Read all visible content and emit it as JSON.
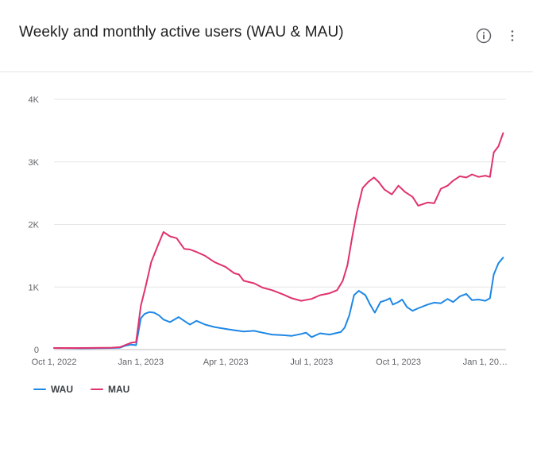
{
  "card": {
    "title": "Weekly and monthly active users (WAU & MAU)",
    "info_icon": "info-icon",
    "menu_icon": "more-vert-icon"
  },
  "colors": {
    "wau": "#1e88e5",
    "mau": "#e0326e",
    "grid": "#e6e6e6",
    "axis": "#bdbdbd"
  },
  "chart_data": {
    "type": "line",
    "title": "Weekly and monthly active users (WAU & MAU)",
    "xlabel": "",
    "ylabel": "",
    "xlim": [
      "2022-10-01",
      "2024-01-23"
    ],
    "ylim": [
      0,
      4000
    ],
    "grid": true,
    "legend_position": "bottom-left",
    "x_ticks": [
      {
        "label": "Oct 1, 2022",
        "date": "2022-10-01"
      },
      {
        "label": "Jan 1, 2023",
        "date": "2023-01-01"
      },
      {
        "label": "Apr 1, 2023",
        "date": "2023-04-01"
      },
      {
        "label": "Jul 1, 2023",
        "date": "2023-07-01"
      },
      {
        "label": "Oct 1, 2023",
        "date": "2023-10-01"
      },
      {
        "label": "Jan 1, 20…",
        "date": "2024-01-01"
      }
    ],
    "y_ticks": [
      {
        "label": "0",
        "value": 0
      },
      {
        "label": "1K",
        "value": 1000
      },
      {
        "label": "2K",
        "value": 2000
      },
      {
        "label": "3K",
        "value": 3000
      },
      {
        "label": "4K",
        "value": 4000
      }
    ],
    "series": [
      {
        "name": "WAU",
        "color": "#1e88e5",
        "points": [
          [
            "2022-10-01",
            25
          ],
          [
            "2022-11-01",
            20
          ],
          [
            "2022-12-01",
            25
          ],
          [
            "2022-12-10",
            30
          ],
          [
            "2022-12-15",
            60
          ],
          [
            "2022-12-22",
            80
          ],
          [
            "2022-12-27",
            70
          ],
          [
            "2023-01-01",
            500
          ],
          [
            "2023-01-05",
            570
          ],
          [
            "2023-01-10",
            600
          ],
          [
            "2023-01-15",
            590
          ],
          [
            "2023-01-20",
            550
          ],
          [
            "2023-01-25",
            480
          ],
          [
            "2023-02-01",
            440
          ],
          [
            "2023-02-10",
            520
          ],
          [
            "2023-02-18",
            440
          ],
          [
            "2023-02-22",
            400
          ],
          [
            "2023-03-01",
            460
          ],
          [
            "2023-03-10",
            400
          ],
          [
            "2023-03-20",
            360
          ],
          [
            "2023-04-01",
            330
          ],
          [
            "2023-04-10",
            310
          ],
          [
            "2023-04-20",
            290
          ],
          [
            "2023-05-01",
            300
          ],
          [
            "2023-05-10",
            270
          ],
          [
            "2023-05-20",
            240
          ],
          [
            "2023-06-01",
            230
          ],
          [
            "2023-06-10",
            220
          ],
          [
            "2023-06-20",
            250
          ],
          [
            "2023-06-25",
            270
          ],
          [
            "2023-07-01",
            200
          ],
          [
            "2023-07-10",
            260
          ],
          [
            "2023-07-20",
            240
          ],
          [
            "2023-08-01",
            280
          ],
          [
            "2023-08-05",
            350
          ],
          [
            "2023-08-10",
            550
          ],
          [
            "2023-08-15",
            870
          ],
          [
            "2023-08-20",
            940
          ],
          [
            "2023-08-27",
            870
          ],
          [
            "2023-09-01",
            720
          ],
          [
            "2023-09-06",
            590
          ],
          [
            "2023-09-12",
            760
          ],
          [
            "2023-09-18",
            790
          ],
          [
            "2023-09-22",
            820
          ],
          [
            "2023-09-25",
            720
          ],
          [
            "2023-10-01",
            760
          ],
          [
            "2023-10-05",
            800
          ],
          [
            "2023-10-10",
            680
          ],
          [
            "2023-10-16",
            620
          ],
          [
            "2023-10-22",
            660
          ],
          [
            "2023-11-01",
            720
          ],
          [
            "2023-11-08",
            750
          ],
          [
            "2023-11-15",
            740
          ],
          [
            "2023-11-22",
            810
          ],
          [
            "2023-11-28",
            760
          ],
          [
            "2023-12-05",
            850
          ],
          [
            "2023-12-12",
            890
          ],
          [
            "2023-12-18",
            790
          ],
          [
            "2023-12-25",
            800
          ],
          [
            "2024-01-01",
            780
          ],
          [
            "2024-01-06",
            820
          ],
          [
            "2024-01-10",
            1200
          ],
          [
            "2024-01-15",
            1380
          ],
          [
            "2024-01-20",
            1470
          ]
        ]
      },
      {
        "name": "MAU",
        "color": "#e0326e",
        "points": [
          [
            "2022-10-01",
            25
          ],
          [
            "2022-11-01",
            25
          ],
          [
            "2022-12-01",
            30
          ],
          [
            "2022-12-10",
            40
          ],
          [
            "2022-12-15",
            70
          ],
          [
            "2022-12-22",
            110
          ],
          [
            "2022-12-27",
            120
          ],
          [
            "2023-01-01",
            700
          ],
          [
            "2023-01-06",
            1000
          ],
          [
            "2023-01-12",
            1400
          ],
          [
            "2023-01-20",
            1700
          ],
          [
            "2023-01-25",
            1880
          ],
          [
            "2023-02-01",
            1810
          ],
          [
            "2023-02-08",
            1780
          ],
          [
            "2023-02-16",
            1610
          ],
          [
            "2023-02-22",
            1600
          ],
          [
            "2023-03-01",
            1560
          ],
          [
            "2023-03-10",
            1500
          ],
          [
            "2023-03-20",
            1400
          ],
          [
            "2023-04-01",
            1320
          ],
          [
            "2023-04-10",
            1220
          ],
          [
            "2023-04-15",
            1200
          ],
          [
            "2023-04-20",
            1100
          ],
          [
            "2023-05-01",
            1060
          ],
          [
            "2023-05-10",
            990
          ],
          [
            "2023-05-20",
            950
          ],
          [
            "2023-06-01",
            880
          ],
          [
            "2023-06-10",
            820
          ],
          [
            "2023-06-20",
            780
          ],
          [
            "2023-07-01",
            810
          ],
          [
            "2023-07-10",
            870
          ],
          [
            "2023-07-20",
            900
          ],
          [
            "2023-07-28",
            950
          ],
          [
            "2023-08-03",
            1100
          ],
          [
            "2023-08-08",
            1350
          ],
          [
            "2023-08-13",
            1800
          ],
          [
            "2023-08-18",
            2200
          ],
          [
            "2023-08-24",
            2580
          ],
          [
            "2023-08-30",
            2680
          ],
          [
            "2023-09-05",
            2750
          ],
          [
            "2023-09-10",
            2680
          ],
          [
            "2023-09-16",
            2560
          ],
          [
            "2023-09-24",
            2480
          ],
          [
            "2023-10-01",
            2620
          ],
          [
            "2023-10-08",
            2520
          ],
          [
            "2023-10-16",
            2440
          ],
          [
            "2023-10-22",
            2300
          ],
          [
            "2023-11-01",
            2350
          ],
          [
            "2023-11-08",
            2340
          ],
          [
            "2023-11-15",
            2570
          ],
          [
            "2023-11-22",
            2620
          ],
          [
            "2023-11-28",
            2700
          ],
          [
            "2023-12-05",
            2770
          ],
          [
            "2023-12-12",
            2750
          ],
          [
            "2023-12-18",
            2800
          ],
          [
            "2023-12-25",
            2760
          ],
          [
            "2024-01-01",
            2780
          ],
          [
            "2024-01-06",
            2760
          ],
          [
            "2024-01-10",
            3150
          ],
          [
            "2024-01-15",
            3250
          ],
          [
            "2024-01-20",
            3460
          ]
        ]
      }
    ]
  },
  "legend": [
    {
      "label": "WAU",
      "color": "#1e88e5"
    },
    {
      "label": "MAU",
      "color": "#e0326e"
    }
  ]
}
